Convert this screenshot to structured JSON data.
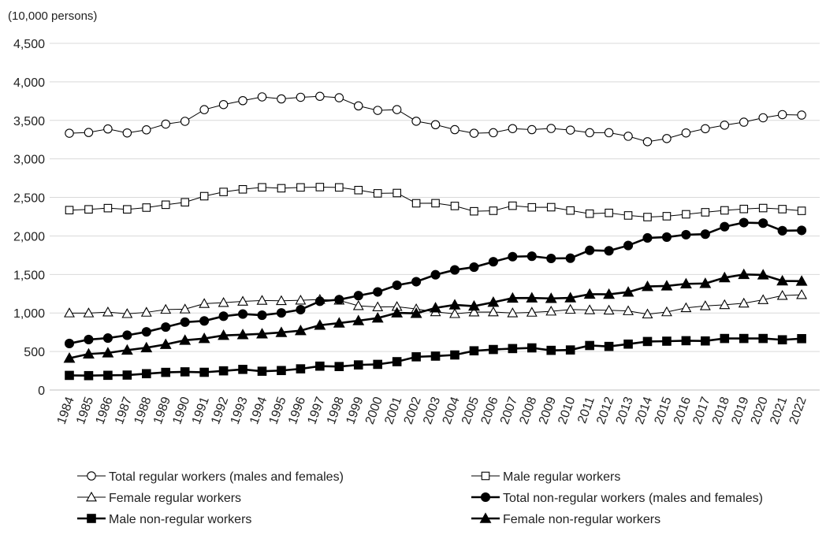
{
  "chart_data": {
    "type": "line",
    "unit_label": "(10,000 persons)",
    "ylim": [
      0,
      4500
    ],
    "y_ticks": [
      0,
      500,
      1000,
      1500,
      2000,
      2500,
      3000,
      3500,
      4000,
      4500
    ],
    "y_tick_labels": [
      "0",
      "500",
      "1,000",
      "1,500",
      "2,000",
      "2,500",
      "3,000",
      "3,500",
      "4,000",
      "4,500"
    ],
    "grid": true,
    "legend_position": "bottom",
    "x": [
      "1984",
      "1985",
      "1986",
      "1987",
      "1988",
      "1989",
      "1990",
      "1991",
      "1992",
      "1993",
      "1994",
      "1995",
      "1996",
      "1997",
      "1998",
      "1999",
      "2000",
      "2001",
      "2002",
      "2003",
      "2004",
      "2005",
      "2006",
      "2007",
      "2008",
      "2009",
      "2010",
      "2011",
      "2012",
      "2013",
      "2014",
      "2015",
      "2016",
      "2017",
      "2018",
      "2019",
      "2020",
      "2021",
      "2022"
    ],
    "series": [
      {
        "name": "Total regular workers (males and females)",
        "marker": "circle-open",
        "line_weight": "thin",
        "color": "#000000",
        "values": [
          3333,
          3343,
          3389,
          3337,
          3377,
          3452,
          3488,
          3639,
          3705,
          3756,
          3805,
          3779,
          3800,
          3812,
          3794,
          3688,
          3630,
          3640,
          3489,
          3444,
          3380,
          3333,
          3340,
          3393,
          3380,
          3395,
          3374,
          3340,
          3340,
          3294,
          3223,
          3264,
          3337,
          3392,
          3438,
          3477,
          3534,
          3575,
          3569
        ]
      },
      {
        "name": "Male regular workers",
        "marker": "square-open",
        "line_weight": "thin",
        "color": "#000000",
        "values": [
          2335,
          2345,
          2361,
          2345,
          2368,
          2405,
          2437,
          2516,
          2571,
          2605,
          2631,
          2619,
          2630,
          2634,
          2630,
          2595,
          2553,
          2557,
          2424,
          2425,
          2389,
          2320,
          2327,
          2392,
          2371,
          2373,
          2330,
          2289,
          2299,
          2266,
          2245,
          2256,
          2281,
          2307,
          2332,
          2350,
          2362,
          2348,
          2326
        ]
      },
      {
        "name": "Female regular workers",
        "marker": "triangle-open",
        "line_weight": "thin",
        "color": "#000000",
        "values": [
          999,
          999,
          1011,
          990,
          1008,
          1045,
          1050,
          1121,
          1134,
          1150,
          1162,
          1158,
          1165,
          1175,
          1164,
          1093,
          1078,
          1082,
          1052,
          1014,
          990,
          1011,
          1012,
          1000,
          1008,
          1022,
          1045,
          1039,
          1035,
          1027,
          985,
          1013,
          1066,
          1092,
          1106,
          1126,
          1171,
          1226,
          1236
        ]
      },
      {
        "name": "Total non-regular workers (males and females)",
        "marker": "circle-filled",
        "line_weight": "thick",
        "color": "#000000",
        "values": [
          604,
          655,
          674,
          711,
          755,
          817,
          881,
          897,
          958,
          986,
          971,
          1001,
          1043,
          1152,
          1173,
          1225,
          1273,
          1360,
          1406,
          1496,
          1559,
          1595,
          1665,
          1731,
          1737,
          1708,
          1711,
          1813,
          1807,
          1876,
          1974,
          1985,
          2016,
          2023,
          2120,
          2173,
          2166,
          2068,
          2072
        ]
      },
      {
        "name": "Male non-regular workers",
        "marker": "square-filled",
        "line_weight": "thick",
        "color": "#000000",
        "values": [
          190,
          187,
          191,
          194,
          212,
          229,
          236,
          230,
          249,
          268,
          244,
          253,
          275,
          310,
          305,
          326,
          333,
          368,
          431,
          440,
          455,
          509,
          526,
          538,
          547,
          515,
          520,
          578,
          566,
          596,
          630,
          634,
          640,
          637,
          669,
          669,
          669,
          652,
          667
        ]
      },
      {
        "name": "Female non-regular workers",
        "marker": "triangle-filled",
        "line_weight": "thick",
        "color": "#000000",
        "values": [
          413,
          468,
          482,
          518,
          549,
          592,
          646,
          668,
          709,
          718,
          729,
          747,
          771,
          841,
          869,
          900,
          934,
          1001,
          995,
          1066,
          1105,
          1089,
          1139,
          1193,
          1195,
          1189,
          1196,
          1244,
          1242,
          1271,
          1344,
          1351,
          1378,
          1383,
          1458,
          1500,
          1494,
          1416,
          1413
        ]
      }
    ]
  }
}
